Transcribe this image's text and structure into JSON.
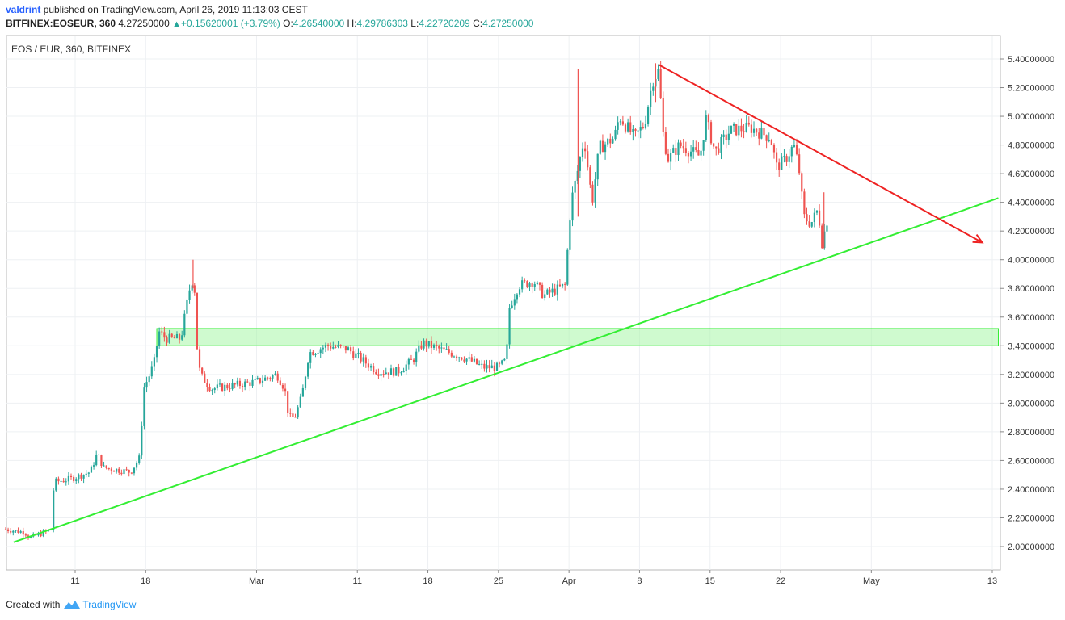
{
  "header": {
    "user": "valdrint",
    "published": "published on TradingView.com, April 26, 2019 11:13:03 CEST"
  },
  "quote": {
    "symbol": "BITFINEX:EOSEUR, 360",
    "last": "4.27250000",
    "change": "+0.15620001 (+3.79%)",
    "o_label": "O:",
    "o": "4.26540000",
    "h_label": "H:",
    "h": "4.29786303",
    "l_label": "L:",
    "l": "4.22720209",
    "c_label": "C:",
    "c": "4.27250000"
  },
  "footer": {
    "created": "Created with",
    "brand": "TradingView"
  },
  "colors": {
    "up": "#26a69a",
    "down": "#ef5350",
    "support": "#33ee33",
    "resistance": "#ee2222",
    "zone": "#a8f5a8"
  },
  "chart_data": {
    "type": "candlestick",
    "title": "EOS / EUR, 360, BITFINEX",
    "y_ticks": [
      "2.00000000",
      "2.20000000",
      "2.40000000",
      "2.60000000",
      "2.80000000",
      "3.00000000",
      "3.20000000",
      "3.40000000",
      "3.60000000",
      "3.80000000",
      "4.00000000",
      "4.20000000",
      "4.40000000",
      "4.60000000",
      "4.80000000",
      "5.00000000",
      "5.20000000",
      "5.40000000"
    ],
    "x_ticks": [
      {
        "label": "11",
        "day": 11
      },
      {
        "label": "18",
        "day": 18
      },
      {
        "label": "Mar",
        "day": 29
      },
      {
        "label": "11",
        "day": 39
      },
      {
        "label": "18",
        "day": 46
      },
      {
        "label": "25",
        "day": 53
      },
      {
        "label": "Apr",
        "day": 60
      },
      {
        "label": "8",
        "day": 67
      },
      {
        "label": "15",
        "day": 74
      },
      {
        "label": "22",
        "day": 81
      },
      {
        "label": "May",
        "day": 90
      },
      {
        "label": "13",
        "day": 102
      }
    ],
    "ylim": [
      1.85,
      5.5
    ],
    "xlim": [
      4.1,
      102.6
    ],
    "price_path": [
      [
        4.1,
        2.12
      ],
      [
        6.0,
        2.1
      ],
      [
        6.5,
        2.06
      ],
      [
        8.0,
        2.1
      ],
      [
        8.6,
        2.12
      ],
      [
        8.9,
        2.45
      ],
      [
        10.5,
        2.47
      ],
      [
        12.5,
        2.52
      ],
      [
        13.2,
        2.65
      ],
      [
        13.8,
        2.55
      ],
      [
        16.5,
        2.52
      ],
      [
        17.4,
        2.62
      ],
      [
        17.8,
        3.1
      ],
      [
        18.4,
        3.2
      ],
      [
        18.9,
        3.3
      ],
      [
        19.3,
        3.5
      ],
      [
        20.0,
        3.45
      ],
      [
        21.5,
        3.45
      ],
      [
        22.3,
        3.78
      ],
      [
        22.8,
        3.9
      ],
      [
        23.0,
        3.45
      ],
      [
        23.4,
        3.2
      ],
      [
        24.5,
        3.1
      ],
      [
        26.5,
        3.12
      ],
      [
        29.0,
        3.15
      ],
      [
        31.0,
        3.2
      ],
      [
        31.8,
        3.1
      ],
      [
        32.2,
        2.9
      ],
      [
        32.8,
        2.9
      ],
      [
        33.5,
        3.05
      ],
      [
        34.2,
        3.35
      ],
      [
        36.0,
        3.4
      ],
      [
        38.0,
        3.38
      ],
      [
        39.5,
        3.3
      ],
      [
        41.0,
        3.22
      ],
      [
        43.0,
        3.22
      ],
      [
        44.5,
        3.3
      ],
      [
        45.5,
        3.42
      ],
      [
        47.0,
        3.38
      ],
      [
        49.5,
        3.32
      ],
      [
        51.5,
        3.25
      ],
      [
        53.0,
        3.25
      ],
      [
        53.8,
        3.3
      ],
      [
        54.0,
        3.65
      ],
      [
        55.0,
        3.82
      ],
      [
        56.5,
        3.85
      ],
      [
        57.5,
        3.75
      ],
      [
        59.0,
        3.8
      ],
      [
        59.6,
        3.82
      ],
      [
        60.2,
        4.4
      ],
      [
        60.8,
        4.6
      ],
      [
        61.5,
        4.85
      ],
      [
        62.3,
        4.4
      ],
      [
        63.0,
        4.78
      ],
      [
        64.5,
        4.85
      ],
      [
        65.0,
        5.0
      ],
      [
        66.5,
        4.85
      ],
      [
        67.5,
        4.95
      ],
      [
        68.3,
        5.25
      ],
      [
        68.9,
        5.32
      ],
      [
        69.3,
        4.9
      ],
      [
        69.8,
        4.7
      ],
      [
        71.0,
        4.8
      ],
      [
        73.0,
        4.72
      ],
      [
        73.6,
        4.98
      ],
      [
        74.5,
        4.75
      ],
      [
        76.0,
        4.9
      ],
      [
        78.0,
        4.92
      ],
      [
        80.0,
        4.85
      ],
      [
        80.6,
        4.65
      ],
      [
        81.5,
        4.7
      ],
      [
        82.3,
        4.8
      ],
      [
        82.8,
        4.65
      ],
      [
        83.3,
        4.3
      ],
      [
        84.0,
        4.25
      ],
      [
        84.7,
        4.35
      ],
      [
        85.1,
        4.12
      ],
      [
        85.6,
        4.27
      ]
    ],
    "spikes": [
      {
        "day": 60.9,
        "high": 5.33,
        "low": 4.3
      },
      {
        "day": 68.6,
        "high": 5.37,
        "low": 5.1
      },
      {
        "day": 22.7,
        "high": 4.0,
        "low": 3.8
      },
      {
        "day": 85.3,
        "high": 4.47,
        "low": 4.08
      }
    ],
    "annotations": {
      "support_line": [
        [
          4.9,
          2.03
        ],
        [
          102.6,
          4.43
        ]
      ],
      "resistance_arrow": [
        [
          68.9,
          5.36
        ],
        [
          101.0,
          4.12
        ]
      ],
      "zone": {
        "from_day": 19.1,
        "to_day": 102.6,
        "low": 3.4,
        "high": 3.52
      }
    }
  }
}
